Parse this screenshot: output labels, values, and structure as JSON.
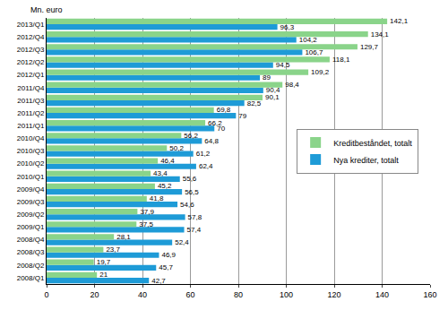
{
  "chart_data": {
    "type": "bar",
    "orientation": "horizontal",
    "xlabel": "Mn. euro",
    "categories": [
      "2008/Q1",
      "2008/Q2",
      "2008/Q3",
      "2008/Q4",
      "2009/Q1",
      "2009/Q2",
      "2009/Q3",
      "2009/Q4",
      "2010/Q1",
      "2010/Q2",
      "2010/Q3",
      "2010/Q4",
      "2011/Q1",
      "2011/Q2",
      "2011/Q3",
      "2011/Q4",
      "2012/Q1",
      "2012/Q2",
      "2012/Q3",
      "2012/Q4",
      "2013/Q1"
    ],
    "series": [
      {
        "name": "Kreditbeståndet, totalt",
        "color": "#8ad48a",
        "values": [
          21,
          19.7,
          23.7,
          28.1,
          37.5,
          37.9,
          41.8,
          45.2,
          43.4,
          46.4,
          50.2,
          56.2,
          66.2,
          69.8,
          90.1,
          98.4,
          109.2,
          118.1,
          129.7,
          134.1,
          142.1
        ],
        "value_labels": [
          "21",
          "19,7",
          "23,7",
          "28,1",
          "37,5",
          "37,9",
          "41,8",
          "45,2",
          "43,4",
          "46,4",
          "50,2",
          "56,2",
          "66,2",
          "69,8",
          "90,1",
          "98,4",
          "109,2",
          "118,1",
          "129,7",
          "134,1",
          "142,1"
        ]
      },
      {
        "name": "Nya krediter, totalt",
        "color": "#1e9bd7",
        "values": [
          42.7,
          45.7,
          46.9,
          52.4,
          57.4,
          57.8,
          54.6,
          56.5,
          55.6,
          62.4,
          61.2,
          64.8,
          70,
          79,
          82.5,
          90.4,
          89,
          94.5,
          106.7,
          104.2,
          96.3
        ],
        "value_labels": [
          "42,7",
          "45,7",
          "46,9",
          "52,4",
          "57,4",
          "57,8",
          "54,6",
          "56,5",
          "55,6",
          "62,4",
          "61,2",
          "64,8",
          "70",
          "79",
          "82,5",
          "90,4",
          "89",
          "94,5",
          "106,7",
          "104,2",
          "96,3"
        ]
      }
    ],
    "xlim": [
      0,
      160
    ],
    "xticks": [
      0,
      20,
      40,
      60,
      80,
      100,
      120,
      140,
      160
    ],
    "grid": true,
    "legend": "right",
    "data_labels": true
  }
}
